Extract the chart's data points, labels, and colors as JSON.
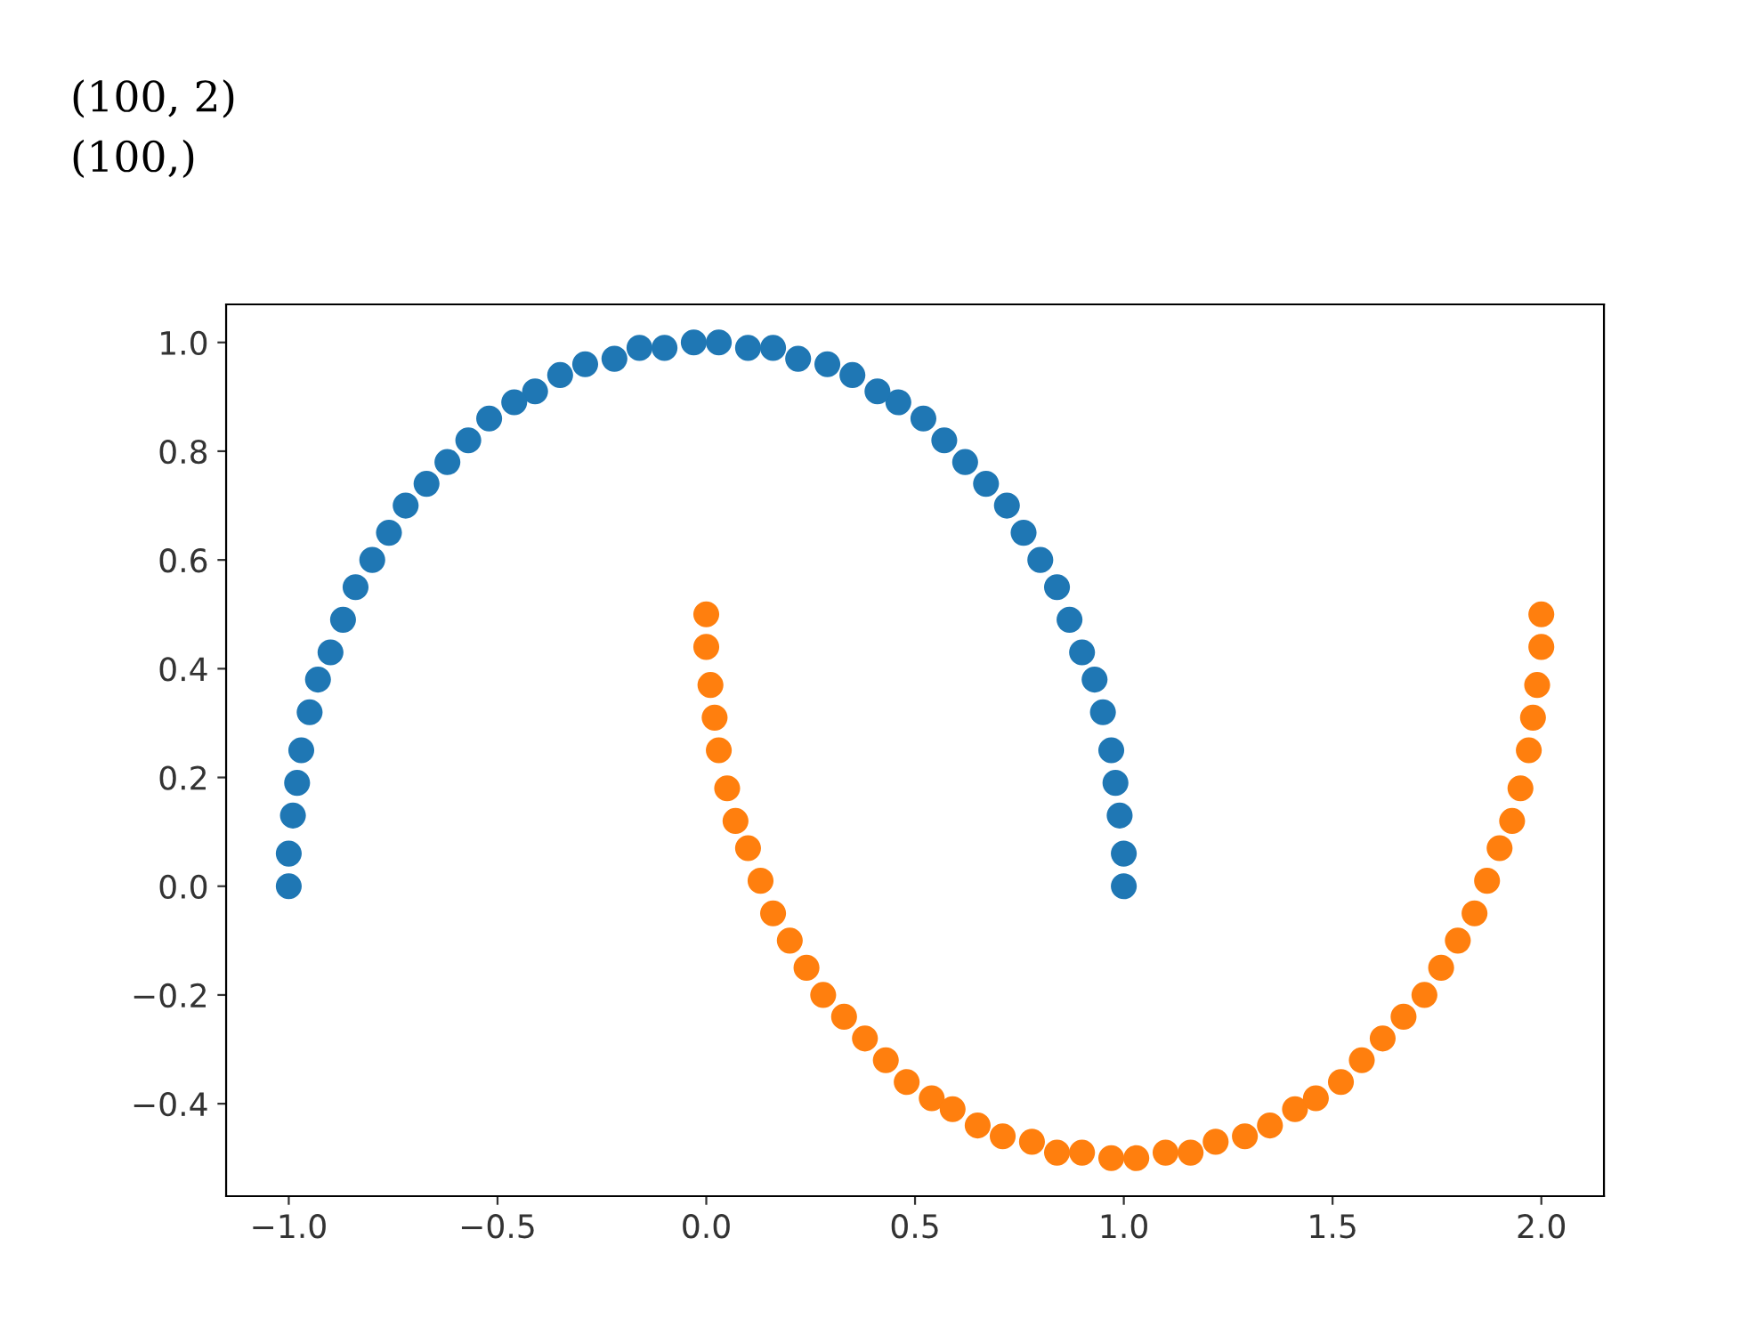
{
  "chart_data": {
    "type": "scatter",
    "annotations": [
      "(100, 2)",
      "(100,)"
    ],
    "series": [
      {
        "color": "#1f77b4",
        "x": [
          1.0,
          1.0,
          0.99,
          0.98,
          0.97,
          0.95,
          0.93,
          0.9,
          0.87,
          0.84,
          0.8,
          0.76,
          0.72,
          0.67,
          0.62,
          0.57,
          0.52,
          0.46,
          0.41,
          0.35,
          0.29,
          0.22,
          0.16,
          0.1,
          0.03,
          -0.03,
          -0.1,
          -0.16,
          -0.22,
          -0.29,
          -0.35,
          -0.41,
          -0.46,
          -0.52,
          -0.57,
          -0.62,
          -0.67,
          -0.72,
          -0.76,
          -0.8,
          -0.84,
          -0.87,
          -0.9,
          -0.93,
          -0.95,
          -0.97,
          -0.98,
          -0.99,
          -1.0,
          -1.0
        ],
        "values": [
          0.0,
          0.06,
          0.13,
          0.19,
          0.25,
          0.32,
          0.38,
          0.43,
          0.49,
          0.55,
          0.6,
          0.65,
          0.7,
          0.74,
          0.78,
          0.82,
          0.86,
          0.89,
          0.91,
          0.94,
          0.96,
          0.97,
          0.99,
          0.99,
          1.0,
          1.0,
          0.99,
          0.99,
          0.97,
          0.96,
          0.94,
          0.91,
          0.89,
          0.86,
          0.82,
          0.78,
          0.74,
          0.7,
          0.65,
          0.6,
          0.55,
          0.49,
          0.43,
          0.38,
          0.32,
          0.25,
          0.19,
          0.13,
          0.06,
          0.0
        ]
      },
      {
        "color": "#ff7f0e",
        "x": [
          0.0,
          0.0,
          0.01,
          0.02,
          0.03,
          0.05,
          0.07,
          0.1,
          0.13,
          0.16,
          0.2,
          0.24,
          0.28,
          0.33,
          0.38,
          0.43,
          0.48,
          0.54,
          0.59,
          0.65,
          0.71,
          0.78,
          0.84,
          0.9,
          0.97,
          1.03,
          1.1,
          1.16,
          1.22,
          1.29,
          1.35,
          1.41,
          1.46,
          1.52,
          1.57,
          1.62,
          1.67,
          1.72,
          1.76,
          1.8,
          1.84,
          1.87,
          1.9,
          1.93,
          1.95,
          1.97,
          1.98,
          1.99,
          2.0,
          2.0
        ],
        "values": [
          0.5,
          0.44,
          0.37,
          0.31,
          0.25,
          0.18,
          0.12,
          0.07,
          0.01,
          -0.05,
          -0.1,
          -0.15,
          -0.2,
          -0.24,
          -0.28,
          -0.32,
          -0.36,
          -0.39,
          -0.41,
          -0.44,
          -0.46,
          -0.47,
          -0.49,
          -0.49,
          -0.5,
          -0.5,
          -0.49,
          -0.49,
          -0.47,
          -0.46,
          -0.44,
          -0.41,
          -0.39,
          -0.36,
          -0.32,
          -0.28,
          -0.24,
          -0.2,
          -0.15,
          -0.1,
          -0.05,
          0.01,
          0.07,
          0.12,
          0.18,
          0.25,
          0.31,
          0.37,
          0.44,
          0.5
        ]
      }
    ],
    "marker": "circle",
    "xlim": [
      -1.15,
      2.15
    ],
    "xticks": [
      {
        "value": -1.0,
        "label": "−1.0"
      },
      {
        "value": -0.5,
        "label": "−0.5"
      },
      {
        "value": 0.0,
        "label": "0.0"
      },
      {
        "value": 0.5,
        "label": "0.5"
      },
      {
        "value": 1.0,
        "label": "1.0"
      },
      {
        "value": 1.5,
        "label": "1.5"
      },
      {
        "value": 2.0,
        "label": "2.0"
      }
    ],
    "ylim": [
      -0.57,
      1.07
    ],
    "yticks": [
      {
        "value": -0.4,
        "label": "−0.4"
      },
      {
        "value": -0.2,
        "label": "−0.2"
      },
      {
        "value": 0.0,
        "label": "0.0"
      },
      {
        "value": 0.2,
        "label": "0.2"
      },
      {
        "value": 0.4,
        "label": "0.4"
      },
      {
        "value": 0.6,
        "label": "0.6"
      },
      {
        "value": 0.8,
        "label": "0.8"
      },
      {
        "value": 1.0,
        "label": "1.0"
      }
    ],
    "grid": false
  }
}
